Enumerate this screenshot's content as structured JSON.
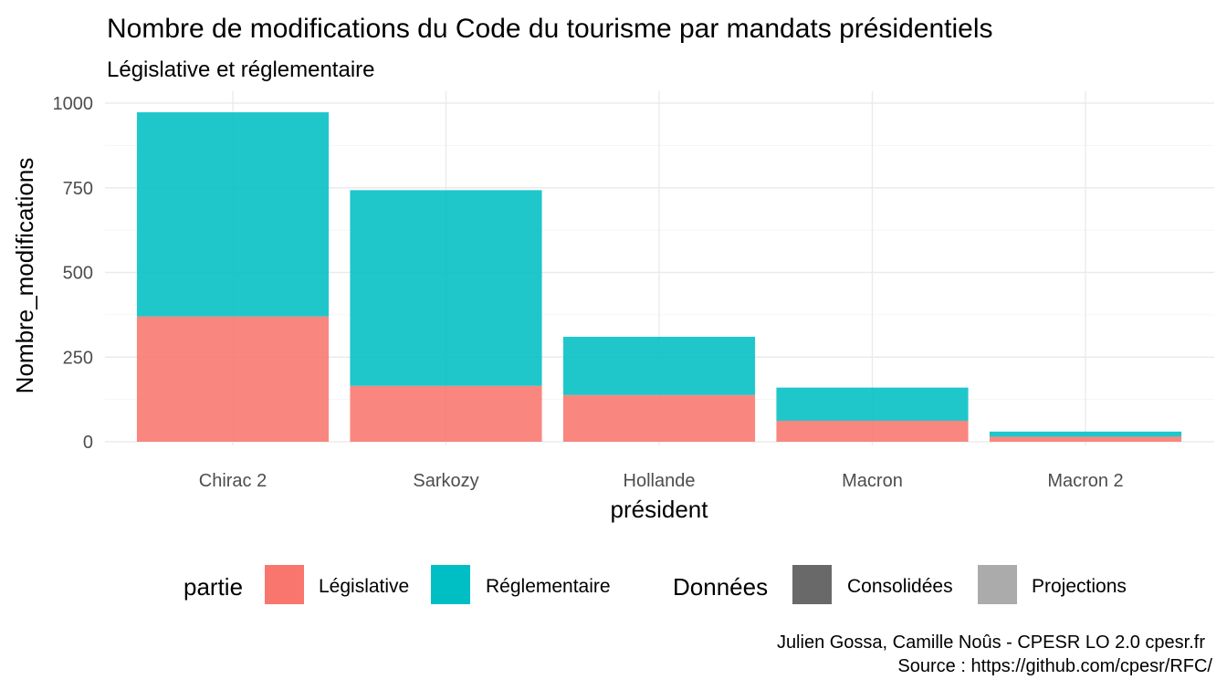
{
  "chart_data": {
    "type": "bar",
    "stacked": true,
    "title": "Nombre de modifications du Code du tourisme par mandats présidentiels",
    "subtitle": "Législative et réglementaire",
    "xlabel": "président",
    "ylabel": "Nombre_modifications",
    "ylim": [
      0,
      1000
    ],
    "yticks": [
      0,
      250,
      500,
      750,
      1000
    ],
    "categories": [
      "Chirac 2",
      "Sarkozy",
      "Hollande",
      "Macron",
      "Macron 2"
    ],
    "series": [
      {
        "name": "Législative",
        "color": "#F8766D",
        "values": [
          370,
          165,
          138,
          62,
          15
        ]
      },
      {
        "name": "Réglementaire",
        "color": "#00BFC4",
        "values": [
          603,
          578,
          172,
          98,
          15
        ]
      }
    ],
    "grid": true,
    "legend": {
      "placement": "bottom",
      "groups": [
        {
          "title": "partie",
          "entries": [
            {
              "label": "Législative",
              "color": "#F8766D"
            },
            {
              "label": "Réglementaire",
              "color": "#00BFC4"
            }
          ]
        },
        {
          "title": "Données",
          "entries": [
            {
              "label": "Consolidées",
              "color": "#696969"
            },
            {
              "label": "Projections",
              "color": "#ababab"
            }
          ]
        }
      ]
    },
    "caption": [
      "Julien Gossa, Camille Noûs - CPESR LO 2.0 cpesr.fr",
      "Source : https://github.com/cpesr/RFC/"
    ]
  }
}
